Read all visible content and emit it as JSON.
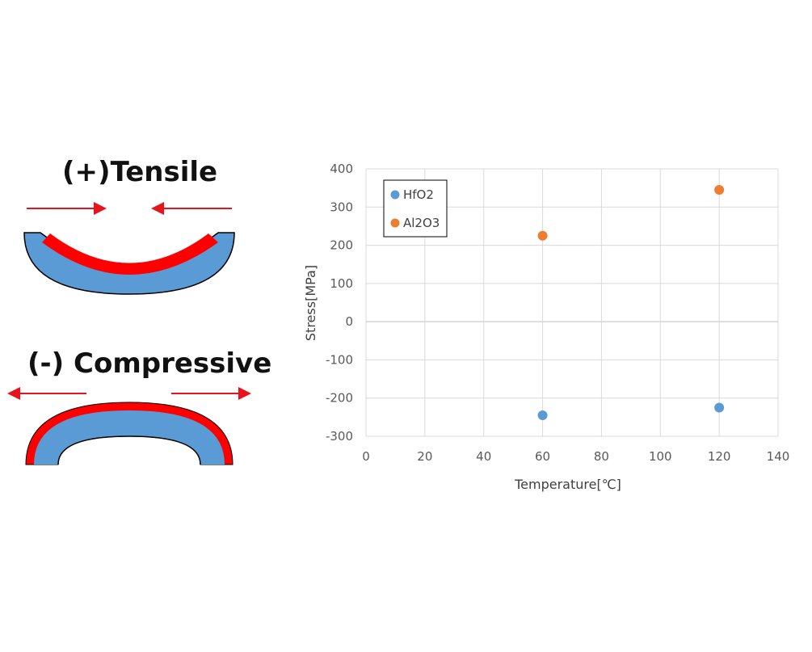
{
  "diagram": {
    "tensile_label": "(+)Tensile",
    "compressive_label": "(-) Compressive",
    "colors": {
      "substrate": "#5b9bd5",
      "film": "#ff0000",
      "arrow": "#e8141c",
      "outline": "#000000"
    }
  },
  "chart_data": {
    "type": "scatter",
    "xlabel": "Temperature[℃]",
    "ylabel": "Stress[MPa]",
    "xlim": [
      0,
      140
    ],
    "ylim": [
      -300,
      400
    ],
    "xticks": [
      0,
      20,
      40,
      60,
      80,
      100,
      120,
      140
    ],
    "yticks": [
      400,
      300,
      200,
      100,
      0,
      -100,
      -200,
      -300
    ],
    "grid": true,
    "legend_position": "top-left",
    "series": [
      {
        "name": "HfO2",
        "color": "#5b9bd5",
        "points": [
          {
            "x": 60,
            "y": -245
          },
          {
            "x": 120,
            "y": -225
          }
        ]
      },
      {
        "name": "Al2O3",
        "color": "#ed7d31",
        "points": [
          {
            "x": 60,
            "y": 225
          },
          {
            "x": 120,
            "y": 345
          }
        ]
      }
    ]
  }
}
